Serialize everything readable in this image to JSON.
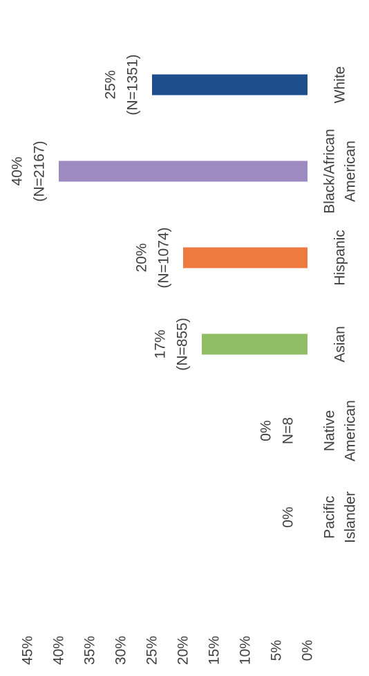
{
  "chart_data": {
    "type": "bar",
    "orientation": "rotated-90-clockwise",
    "title": "",
    "xlabel": "",
    "ylabel": "",
    "ylim": [
      0,
      45
    ],
    "y_ticks": [
      "0%",
      "5%",
      "10%",
      "15%",
      "20%",
      "25%",
      "30%",
      "35%",
      "40%",
      "45%"
    ],
    "grid": false,
    "legend": "none",
    "categories": [
      {
        "lines": [
          "White"
        ]
      },
      {
        "lines": [
          "Black/African",
          "American"
        ]
      },
      {
        "lines": [
          "Hispanic"
        ]
      },
      {
        "lines": [
          "Asian"
        ]
      },
      {
        "lines": [
          "Native",
          "American"
        ]
      },
      {
        "lines": [
          "Pacific",
          "Islander"
        ]
      }
    ],
    "values": [
      25,
      40,
      20,
      17,
      0,
      0
    ],
    "data_labels": [
      [
        "25%",
        "(N=1351)"
      ],
      [
        "40%",
        "(N=2167)"
      ],
      [
        "20%",
        "(N=1074)"
      ],
      [
        "17%",
        "(N=855)"
      ],
      [
        "0%",
        "N=8"
      ],
      [
        "0%"
      ]
    ],
    "colors": [
      "#1f4e8c",
      "#9c8ac0",
      "#ef7a3f",
      "#8fbe67",
      "#cccccc",
      "#cccccc"
    ]
  }
}
